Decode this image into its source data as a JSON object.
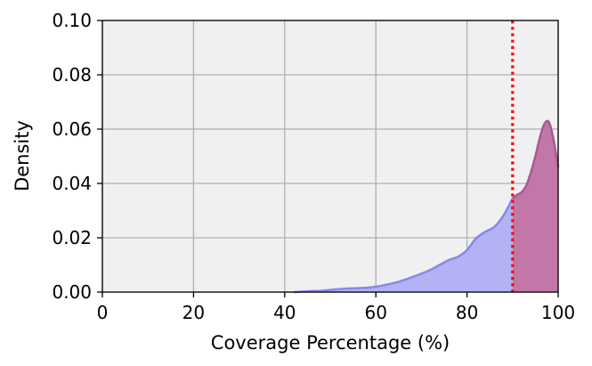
{
  "chart_data": {
    "type": "area",
    "title": "",
    "xlabel": "Coverage Percentage (%)",
    "ylabel": "Density",
    "xlim": [
      0,
      100
    ],
    "ylim": [
      0,
      0.1
    ],
    "xticks": [
      "0",
      "20",
      "40",
      "60",
      "80",
      "100"
    ],
    "yticks": [
      "0.00",
      "0.02",
      "0.04",
      "0.06",
      "0.08",
      "0.10"
    ],
    "grid": true,
    "threshold": 90,
    "series": [
      {
        "fill_color": "#b2b2f4",
        "line_color": "#8888e8",
        "x": [
          42,
          45,
          48,
          50,
          52,
          55,
          58,
          60,
          62,
          65,
          68,
          70,
          72,
          74,
          76,
          78,
          80,
          82,
          84,
          86,
          88,
          90
        ],
        "y": [
          0.0,
          0.0003,
          0.0005,
          0.0008,
          0.0011,
          0.0014,
          0.0016,
          0.002,
          0.0026,
          0.0038,
          0.0055,
          0.0068,
          0.0082,
          0.01,
          0.0118,
          0.013,
          0.0155,
          0.0198,
          0.0222,
          0.024,
          0.0282,
          0.0345
        ]
      },
      {
        "fill_color": "#c277a8",
        "line_color": "#a85a92",
        "x": [
          90,
          91,
          92,
          93,
          94,
          95,
          96,
          97,
          98,
          99,
          100
        ],
        "y": [
          0.0345,
          0.0358,
          0.0368,
          0.0392,
          0.044,
          0.05,
          0.057,
          0.062,
          0.0625,
          0.056,
          0.046
        ]
      }
    ]
  },
  "colors": {
    "plot_background": "#f0f0f0",
    "grid": "#b0b0b0",
    "threshold_line": "#ff0000"
  }
}
